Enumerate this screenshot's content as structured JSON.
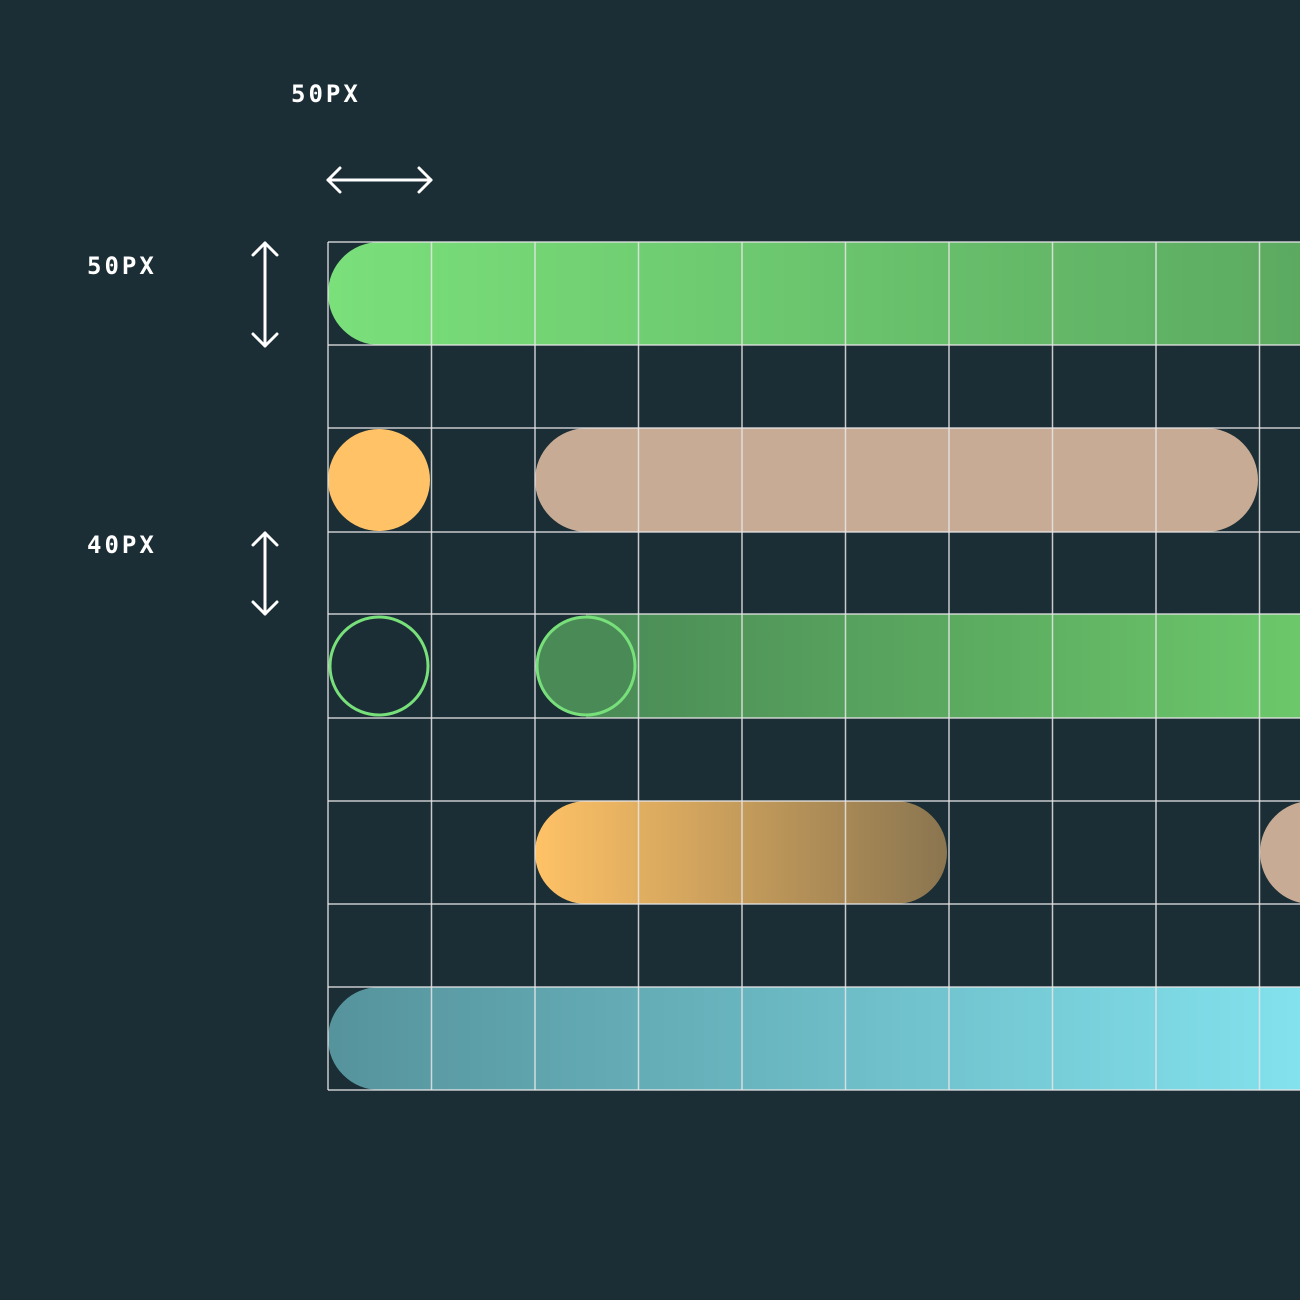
{
  "labels": {
    "column_width": "50PX",
    "row_height": "50PX",
    "gap_height": "40PX"
  },
  "colors": {
    "background": "#1b2d35",
    "grid": "#e6e6e6",
    "green_light": "#7ae07a",
    "green_dark": "#4a8a56",
    "orange": "#ffc266",
    "tan": "#c8ab94",
    "teal": "#56939c",
    "cyan": "#88ecf8"
  },
  "icons": [
    "horizontal-double-arrow-icon",
    "vertical-double-arrow-icon"
  ]
}
